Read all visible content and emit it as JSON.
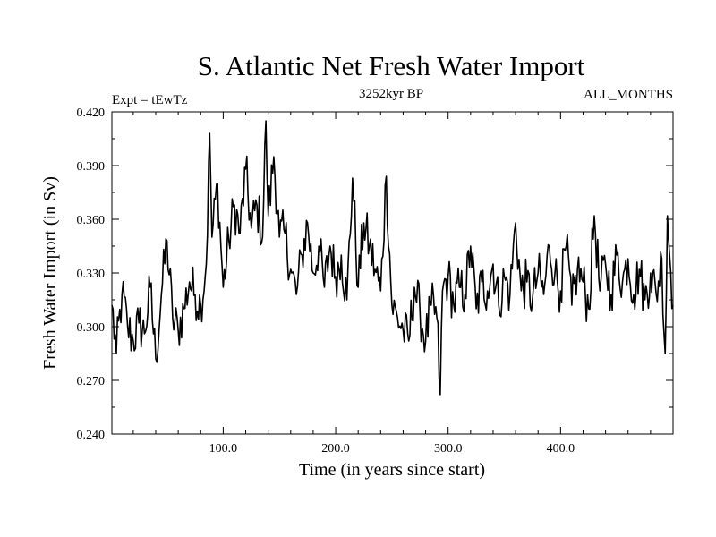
{
  "chart_data": {
    "type": "line",
    "title": "S. Atlantic Net Fresh Water Import",
    "subtitle": "3252kyr BP",
    "expt_label": "Expt = tEwTz",
    "period_label": "ALL_MONTHS",
    "xlabel": "Time (in years since start)",
    "ylabel": "Fresh Water Import (in Sv)",
    "xlim": [
      1,
      500
    ],
    "ylim": [
      0.24,
      0.42
    ],
    "x_ticks": [
      100,
      200,
      300,
      400
    ],
    "x_tick_labels": [
      "100.0",
      "200.0",
      "300.0",
      "400.0"
    ],
    "y_ticks": [
      0.24,
      0.27,
      0.3,
      0.33,
      0.36,
      0.39,
      0.42
    ],
    "y_tick_labels": [
      "0.240",
      "0.270",
      "0.300",
      "0.330",
      "0.360",
      "0.390",
      "0.420"
    ],
    "grid": false,
    "series": [
      {
        "name": "Net fresh water import",
        "color": "#000000",
        "anchors_x": [
          1,
          5,
          10,
          15,
          20,
          25,
          30,
          35,
          40,
          45,
          50,
          55,
          60,
          65,
          70,
          75,
          80,
          85,
          88,
          90,
          95,
          100,
          105,
          110,
          115,
          120,
          125,
          130,
          135,
          138,
          140,
          145,
          150,
          155,
          160,
          165,
          170,
          175,
          180,
          185,
          190,
          195,
          200,
          205,
          210,
          215,
          220,
          225,
          230,
          235,
          240,
          245,
          250,
          255,
          260,
          265,
          270,
          275,
          280,
          285,
          290,
          293,
          295,
          300,
          305,
          310,
          315,
          320,
          325,
          330,
          335,
          340,
          345,
          350,
          355,
          360,
          365,
          370,
          375,
          380,
          385,
          390,
          395,
          400,
          405,
          410,
          415,
          420,
          425,
          430,
          435,
          440,
          445,
          450,
          455,
          460,
          465,
          470,
          475,
          480,
          485,
          490,
          493,
          495,
          500
        ],
        "anchors_y": [
          0.312,
          0.285,
          0.318,
          0.3,
          0.292,
          0.302,
          0.296,
          0.322,
          0.282,
          0.318,
          0.348,
          0.305,
          0.298,
          0.31,
          0.325,
          0.318,
          0.312,
          0.335,
          0.408,
          0.35,
          0.38,
          0.322,
          0.348,
          0.368,
          0.352,
          0.388,
          0.355,
          0.368,
          0.35,
          0.415,
          0.362,
          0.395,
          0.35,
          0.352,
          0.332,
          0.318,
          0.34,
          0.358,
          0.33,
          0.345,
          0.322,
          0.345,
          0.328,
          0.34,
          0.315,
          0.383,
          0.322,
          0.358,
          0.345,
          0.332,
          0.32,
          0.384,
          0.312,
          0.305,
          0.298,
          0.292,
          0.322,
          0.308,
          0.292,
          0.312,
          0.305,
          0.262,
          0.32,
          0.328,
          0.312,
          0.322,
          0.318,
          0.345,
          0.31,
          0.325,
          0.32,
          0.335,
          0.312,
          0.328,
          0.318,
          0.358,
          0.32,
          0.325,
          0.315,
          0.33,
          0.318,
          0.345,
          0.33,
          0.32,
          0.345,
          0.312,
          0.332,
          0.325,
          0.31,
          0.362,
          0.32,
          0.335,
          0.318,
          0.34,
          0.325,
          0.338,
          0.318,
          0.332,
          0.315,
          0.33,
          0.318,
          0.338,
          0.285,
          0.362,
          0.312
        ]
      }
    ]
  }
}
